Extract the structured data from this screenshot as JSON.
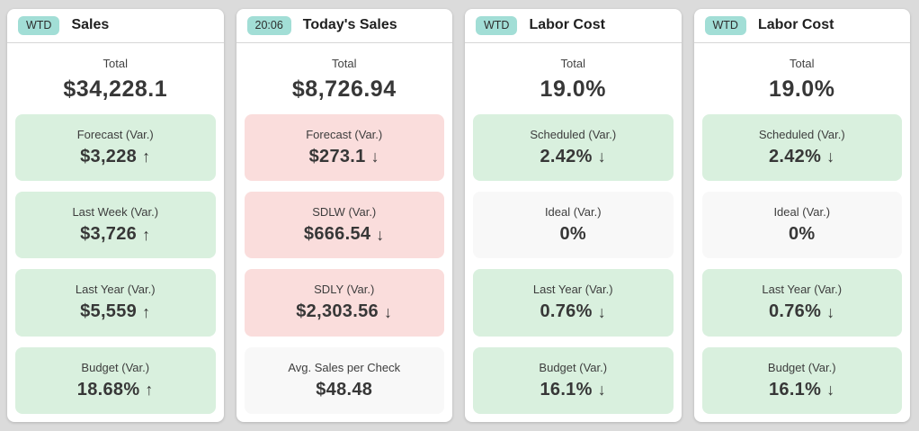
{
  "colors": {
    "page_background": "#dbdbdb",
    "card_background": "#ffffff",
    "badge_background": "#a2ded6",
    "positive_tile_background": "#d9f0de",
    "negative_tile_background": "#fadddc",
    "neutral_tile_background": "#f8f8f8"
  },
  "cards": [
    {
      "badge": "WTD",
      "title": "Sales",
      "total_label": "Total",
      "total_value": "$34,228.1",
      "tiles": [
        {
          "label": "Forecast (Var.)",
          "value": "$3,228",
          "arrow": "↑",
          "status": "positive"
        },
        {
          "label": "Last Week (Var.)",
          "value": "$3,726",
          "arrow": "↑",
          "status": "positive"
        },
        {
          "label": "Last Year (Var.)",
          "value": "$5,559",
          "arrow": "↑",
          "status": "positive"
        },
        {
          "label": "Budget (Var.)",
          "value": "18.68%",
          "arrow": "↑",
          "status": "positive"
        }
      ]
    },
    {
      "badge": "20:06",
      "title": "Today's Sales",
      "total_label": "Total",
      "total_value": "$8,726.94",
      "tiles": [
        {
          "label": "Forecast (Var.)",
          "value": "$273.1",
          "arrow": "↓",
          "status": "negative"
        },
        {
          "label": "SDLW (Var.)",
          "value": "$666.54",
          "arrow": "↓",
          "status": "negative"
        },
        {
          "label": "SDLY (Var.)",
          "value": "$2,303.56",
          "arrow": "↓",
          "status": "negative"
        },
        {
          "label": "Avg. Sales per Check",
          "value": "$48.48",
          "arrow": "",
          "status": "neutral"
        }
      ]
    },
    {
      "badge": "WTD",
      "title": "Labor Cost",
      "total_label": "Total",
      "total_value": "19.0%",
      "tiles": [
        {
          "label": "Scheduled (Var.)",
          "value": "2.42%",
          "arrow": "↓",
          "status": "positive"
        },
        {
          "label": "Ideal (Var.)",
          "value": "0%",
          "arrow": "",
          "status": "neutral"
        },
        {
          "label": "Last Year (Var.)",
          "value": "0.76%",
          "arrow": "↓",
          "status": "positive"
        },
        {
          "label": "Budget (Var.)",
          "value": "16.1%",
          "arrow": "↓",
          "status": "positive"
        }
      ]
    },
    {
      "badge": "WTD",
      "title": "Labor Cost",
      "total_label": "Total",
      "total_value": "19.0%",
      "tiles": [
        {
          "label": "Scheduled (Var.)",
          "value": "2.42%",
          "arrow": "↓",
          "status": "positive"
        },
        {
          "label": "Ideal (Var.)",
          "value": "0%",
          "arrow": "",
          "status": "neutral"
        },
        {
          "label": "Last Year (Var.)",
          "value": "0.76%",
          "arrow": "↓",
          "status": "positive"
        },
        {
          "label": "Budget (Var.)",
          "value": "16.1%",
          "arrow": "↓",
          "status": "positive"
        }
      ]
    }
  ]
}
